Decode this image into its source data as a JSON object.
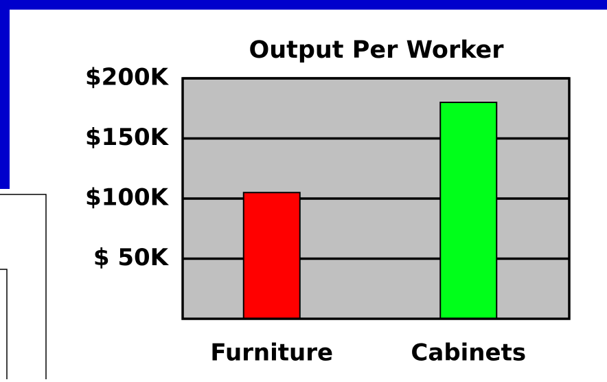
{
  "chart_data": {
    "type": "bar",
    "title": "Output Per Worker",
    "categories": [
      "Furniture",
      "Cabinets"
    ],
    "series": [
      {
        "name": "Output",
        "colors": [
          "#ff0000",
          "#00ff1a"
        ],
        "values": [
          105000,
          180000
        ]
      }
    ],
    "ylim": [
      0,
      200000
    ],
    "yticks": [
      {
        "value": 50000,
        "label": "$ 50K"
      },
      {
        "value": 100000,
        "label": "$100K"
      },
      {
        "value": 150000,
        "label": "$150K"
      },
      {
        "value": 200000,
        "label": "$200K"
      }
    ],
    "grid": true
  }
}
